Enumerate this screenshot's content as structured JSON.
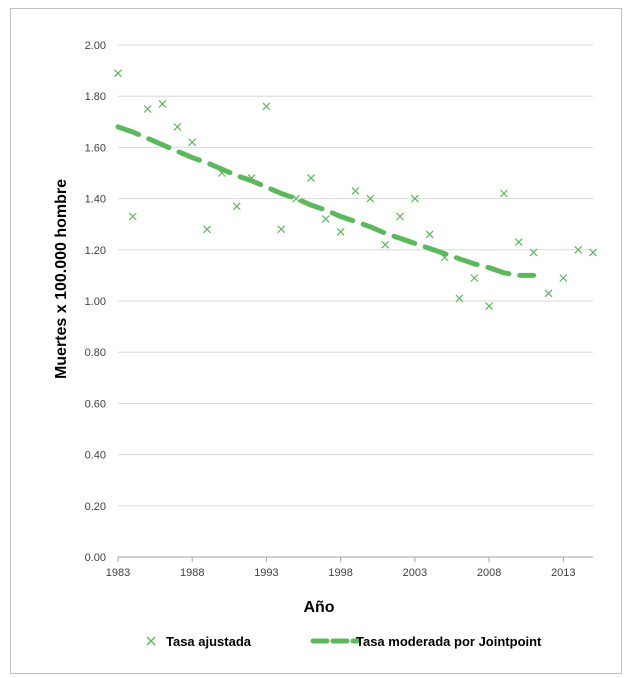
{
  "chart_data": {
    "type": "scatter",
    "title": "",
    "xlabel": "Año",
    "ylabel": "Muertes x 100.000 hombre",
    "xlim": [
      1983,
      2015
    ],
    "ylim": [
      0,
      2
    ],
    "x_ticks": [
      "1983",
      "1988",
      "1993",
      "1998",
      "2003",
      "2008",
      "2013"
    ],
    "y_ticks": [
      "0.00",
      "0.20",
      "0.40",
      "0.60",
      "0.80",
      "1.00",
      "1.20",
      "1.40",
      "1.60",
      "1.80",
      "2.00"
    ],
    "grid": true,
    "legend_position": "bottom",
    "colors": {
      "series": "#5cb85c",
      "grid": "#d9d9d9",
      "axis_text": "#404040"
    },
    "series": [
      {
        "name": "Tasa ajustada",
        "kind": "scatter",
        "marker": "x",
        "points": [
          [
            1983,
            1.89
          ],
          [
            1984,
            1.33
          ],
          [
            1985,
            1.75
          ],
          [
            1986,
            1.77
          ],
          [
            1987,
            1.68
          ],
          [
            1988,
            1.62
          ],
          [
            1989,
            1.28
          ],
          [
            1990,
            1.5
          ],
          [
            1991,
            1.37
          ],
          [
            1992,
            1.48
          ],
          [
            1993,
            1.76
          ],
          [
            1994,
            1.28
          ],
          [
            1995,
            1.4
          ],
          [
            1996,
            1.48
          ],
          [
            1997,
            1.32
          ],
          [
            1998,
            1.27
          ],
          [
            1999,
            1.43
          ],
          [
            2000,
            1.4
          ],
          [
            2001,
            1.22
          ],
          [
            2002,
            1.33
          ],
          [
            2003,
            1.4
          ],
          [
            2004,
            1.26
          ],
          [
            2005,
            1.17
          ],
          [
            2006,
            1.01
          ],
          [
            2007,
            1.09
          ],
          [
            2008,
            0.98
          ],
          [
            2009,
            1.42
          ],
          [
            2010,
            1.23
          ],
          [
            2011,
            1.19
          ],
          [
            2012,
            1.03
          ],
          [
            2013,
            1.09
          ],
          [
            2014,
            1.2
          ],
          [
            2015,
            1.19
          ]
        ]
      },
      {
        "name": "Tasa moderada por Jointpoint",
        "kind": "line",
        "dashed": true,
        "points": [
          [
            1983,
            1.68
          ],
          [
            1984,
            1.66
          ],
          [
            1985,
            1.635
          ],
          [
            1986,
            1.61
          ],
          [
            1987,
            1.585
          ],
          [
            1988,
            1.56
          ],
          [
            1989,
            1.54
          ],
          [
            1990,
            1.515
          ],
          [
            1991,
            1.49
          ],
          [
            1992,
            1.47
          ],
          [
            1993,
            1.445
          ],
          [
            1994,
            1.42
          ],
          [
            1995,
            1.4
          ],
          [
            1996,
            1.375
          ],
          [
            1997,
            1.355
          ],
          [
            1998,
            1.33
          ],
          [
            1999,
            1.31
          ],
          [
            2000,
            1.29
          ],
          [
            2001,
            1.265
          ],
          [
            2002,
            1.245
          ],
          [
            2003,
            1.225
          ],
          [
            2004,
            1.205
          ],
          [
            2005,
            1.185
          ],
          [
            2006,
            1.165
          ],
          [
            2007,
            1.145
          ],
          [
            2008,
            1.13
          ],
          [
            2009,
            1.11
          ],
          [
            2010,
            1.1
          ],
          [
            2011,
            1.1
          ]
        ]
      }
    ]
  }
}
